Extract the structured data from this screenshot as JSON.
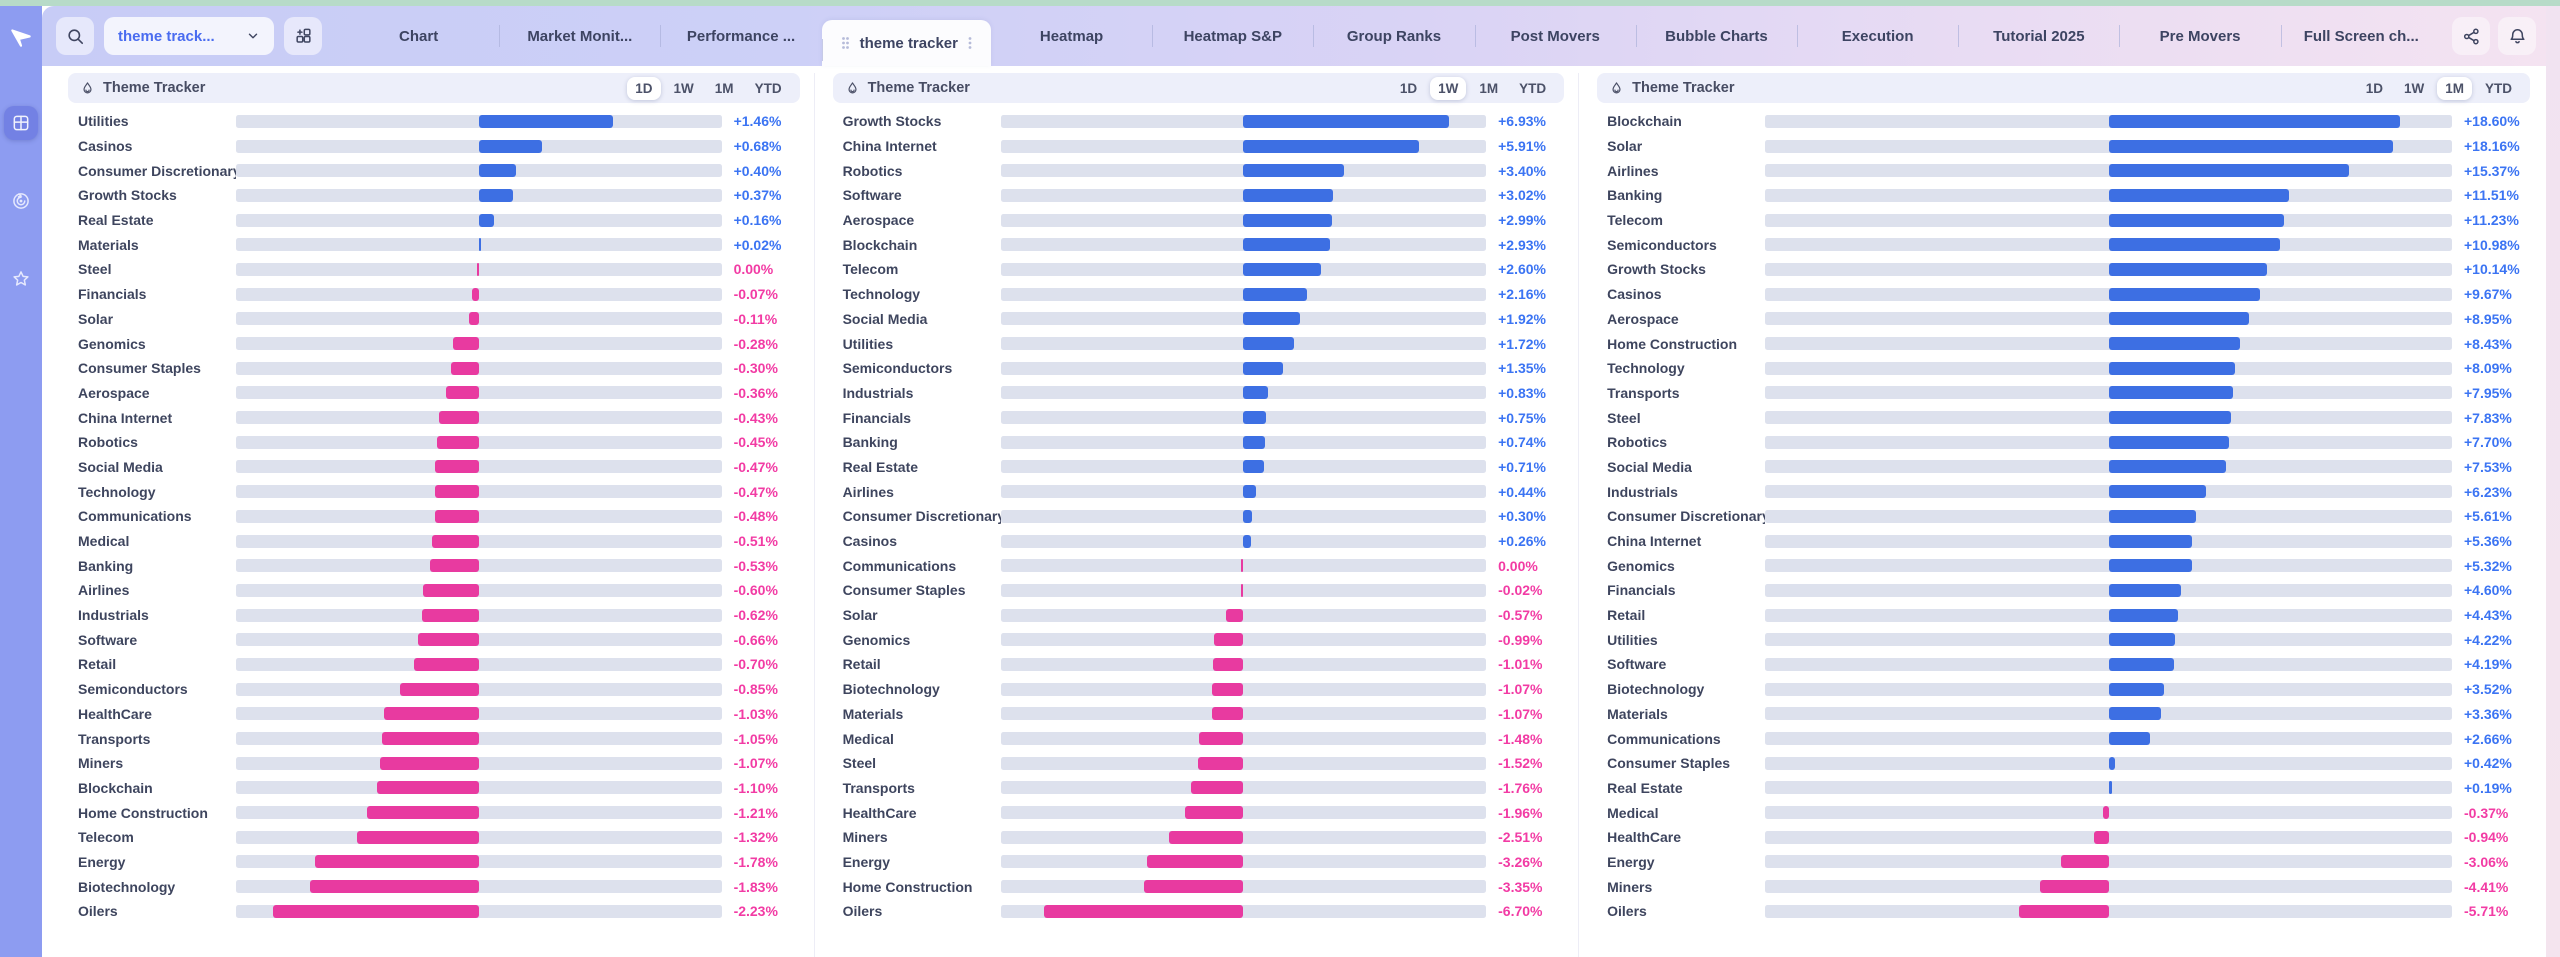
{
  "toolbar": {
    "search_icon": "magnifier",
    "dropdown_value": "theme track...",
    "add_layout_icon": "grid-plus",
    "tabs": [
      {
        "label": "Chart",
        "active": false
      },
      {
        "label": "Market Monit...",
        "active": false
      },
      {
        "label": "Performance ...",
        "active": false
      },
      {
        "label": "theme tracker",
        "active": true
      },
      {
        "label": "Heatmap",
        "active": false
      },
      {
        "label": "Heatmap S&P",
        "active": false
      },
      {
        "label": "Group Ranks",
        "active": false
      },
      {
        "label": "Post Movers",
        "active": false
      },
      {
        "label": "Bubble Charts",
        "active": false
      },
      {
        "label": "Execution",
        "active": false
      },
      {
        "label": "Tutorial 2025",
        "active": false
      },
      {
        "label": "Pre Movers",
        "active": false
      },
      {
        "label": "Full Screen ch...",
        "active": false
      }
    ],
    "actions": [
      "share",
      "notifications"
    ]
  },
  "sidebar": {
    "items": [
      {
        "name": "dashboard",
        "active": true
      },
      {
        "name": "tracker",
        "active": false
      },
      {
        "name": "favorites",
        "active": false
      }
    ]
  },
  "colors": {
    "positive_bar": "#3d6fe3",
    "negative_bar": "#e83aa0",
    "positive_text": "#3b74f3",
    "negative_text": "#f23ba4",
    "track": "#dde1ed",
    "sidebar": "#8d9cf1",
    "top_strip": "#b7dbc8"
  },
  "panels": [
    {
      "title": "Theme Tracker",
      "periods": [
        "1D",
        "1W",
        "1M",
        "YTD"
      ],
      "selected_period": "1D",
      "rows": [
        {
          "label": "Utilities",
          "value": "+1.46%",
          "pct": 1.46
        },
        {
          "label": "Casinos",
          "value": "+0.68%",
          "pct": 0.68
        },
        {
          "label": "Consumer Discretionary",
          "value": "+0.40%",
          "pct": 0.4
        },
        {
          "label": "Growth Stocks",
          "value": "+0.37%",
          "pct": 0.37
        },
        {
          "label": "Real Estate",
          "value": "+0.16%",
          "pct": 0.16
        },
        {
          "label": "Materials",
          "value": "+0.02%",
          "pct": 0.02
        },
        {
          "label": "Steel",
          "value": "0.00%",
          "pct": 0.0
        },
        {
          "label": "Financials",
          "value": "-0.07%",
          "pct": -0.07
        },
        {
          "label": "Solar",
          "value": "-0.11%",
          "pct": -0.11
        },
        {
          "label": "Genomics",
          "value": "-0.28%",
          "pct": -0.28
        },
        {
          "label": "Consumer Staples",
          "value": "-0.30%",
          "pct": -0.3
        },
        {
          "label": "Aerospace",
          "value": "-0.36%",
          "pct": -0.36
        },
        {
          "label": "China Internet",
          "value": "-0.43%",
          "pct": -0.43
        },
        {
          "label": "Robotics",
          "value": "-0.45%",
          "pct": -0.45
        },
        {
          "label": "Social Media",
          "value": "-0.47%",
          "pct": -0.47
        },
        {
          "label": "Technology",
          "value": "-0.47%",
          "pct": -0.47
        },
        {
          "label": "Communications",
          "value": "-0.48%",
          "pct": -0.48
        },
        {
          "label": "Medical",
          "value": "-0.51%",
          "pct": -0.51
        },
        {
          "label": "Banking",
          "value": "-0.53%",
          "pct": -0.53
        },
        {
          "label": "Airlines",
          "value": "-0.60%",
          "pct": -0.6
        },
        {
          "label": "Industrials",
          "value": "-0.62%",
          "pct": -0.62
        },
        {
          "label": "Software",
          "value": "-0.66%",
          "pct": -0.66
        },
        {
          "label": "Retail",
          "value": "-0.70%",
          "pct": -0.7
        },
        {
          "label": "Semiconductors",
          "value": "-0.85%",
          "pct": -0.85
        },
        {
          "label": "HealthCare",
          "value": "-1.03%",
          "pct": -1.03
        },
        {
          "label": "Transports",
          "value": "-1.05%",
          "pct": -1.05
        },
        {
          "label": "Miners",
          "value": "-1.07%",
          "pct": -1.07
        },
        {
          "label": "Blockchain",
          "value": "-1.10%",
          "pct": -1.1
        },
        {
          "label": "Home Construction",
          "value": "-1.21%",
          "pct": -1.21
        },
        {
          "label": "Telecom",
          "value": "-1.32%",
          "pct": -1.32
        },
        {
          "label": "Energy",
          "value": "-1.78%",
          "pct": -1.78
        },
        {
          "label": "Biotechnology",
          "value": "-1.83%",
          "pct": -1.83
        },
        {
          "label": "Oilers",
          "value": "-2.23%",
          "pct": -2.23
        }
      ]
    },
    {
      "title": "Theme Tracker",
      "periods": [
        "1D",
        "1W",
        "1M",
        "YTD"
      ],
      "selected_period": "1W",
      "rows": [
        {
          "label": "Growth Stocks",
          "value": "+6.93%",
          "pct": 6.93
        },
        {
          "label": "China Internet",
          "value": "+5.91%",
          "pct": 5.91
        },
        {
          "label": "Robotics",
          "value": "+3.40%",
          "pct": 3.4
        },
        {
          "label": "Software",
          "value": "+3.02%",
          "pct": 3.02
        },
        {
          "label": "Aerospace",
          "value": "+2.99%",
          "pct": 2.99
        },
        {
          "label": "Blockchain",
          "value": "+2.93%",
          "pct": 2.93
        },
        {
          "label": "Telecom",
          "value": "+2.60%",
          "pct": 2.6
        },
        {
          "label": "Technology",
          "value": "+2.16%",
          "pct": 2.16
        },
        {
          "label": "Social Media",
          "value": "+1.92%",
          "pct": 1.92
        },
        {
          "label": "Utilities",
          "value": "+1.72%",
          "pct": 1.72
        },
        {
          "label": "Semiconductors",
          "value": "+1.35%",
          "pct": 1.35
        },
        {
          "label": "Industrials",
          "value": "+0.83%",
          "pct": 0.83
        },
        {
          "label": "Financials",
          "value": "+0.75%",
          "pct": 0.75
        },
        {
          "label": "Banking",
          "value": "+0.74%",
          "pct": 0.74
        },
        {
          "label": "Real Estate",
          "value": "+0.71%",
          "pct": 0.71
        },
        {
          "label": "Airlines",
          "value": "+0.44%",
          "pct": 0.44
        },
        {
          "label": "Consumer Discretionary",
          "value": "+0.30%",
          "pct": 0.3
        },
        {
          "label": "Casinos",
          "value": "+0.26%",
          "pct": 0.26
        },
        {
          "label": "Communications",
          "value": "0.00%",
          "pct": 0.0
        },
        {
          "label": "Consumer Staples",
          "value": "-0.02%",
          "pct": -0.02
        },
        {
          "label": "Solar",
          "value": "-0.57%",
          "pct": -0.57
        },
        {
          "label": "Genomics",
          "value": "-0.99%",
          "pct": -0.99
        },
        {
          "label": "Retail",
          "value": "-1.01%",
          "pct": -1.01
        },
        {
          "label": "Biotechnology",
          "value": "-1.07%",
          "pct": -1.07
        },
        {
          "label": "Materials",
          "value": "-1.07%",
          "pct": -1.07
        },
        {
          "label": "Medical",
          "value": "-1.48%",
          "pct": -1.48
        },
        {
          "label": "Steel",
          "value": "-1.52%",
          "pct": -1.52
        },
        {
          "label": "Transports",
          "value": "-1.76%",
          "pct": -1.76
        },
        {
          "label": "HealthCare",
          "value": "-1.96%",
          "pct": -1.96
        },
        {
          "label": "Miners",
          "value": "-2.51%",
          "pct": -2.51
        },
        {
          "label": "Energy",
          "value": "-3.26%",
          "pct": -3.26
        },
        {
          "label": "Home Construction",
          "value": "-3.35%",
          "pct": -3.35
        },
        {
          "label": "Oilers",
          "value": "-6.70%",
          "pct": -6.7
        }
      ]
    },
    {
      "title": "Theme Tracker",
      "periods": [
        "1D",
        "1W",
        "1M",
        "YTD"
      ],
      "selected_period": "1M",
      "rows": [
        {
          "label": "Blockchain",
          "value": "+18.60%",
          "pct": 18.6
        },
        {
          "label": "Solar",
          "value": "+18.16%",
          "pct": 18.16
        },
        {
          "label": "Airlines",
          "value": "+15.37%",
          "pct": 15.37
        },
        {
          "label": "Banking",
          "value": "+11.51%",
          "pct": 11.51
        },
        {
          "label": "Telecom",
          "value": "+11.23%",
          "pct": 11.23
        },
        {
          "label": "Semiconductors",
          "value": "+10.98%",
          "pct": 10.98
        },
        {
          "label": "Growth Stocks",
          "value": "+10.14%",
          "pct": 10.14
        },
        {
          "label": "Casinos",
          "value": "+9.67%",
          "pct": 9.67
        },
        {
          "label": "Aerospace",
          "value": "+8.95%",
          "pct": 8.95
        },
        {
          "label": "Home Construction",
          "value": "+8.43%",
          "pct": 8.43
        },
        {
          "label": "Technology",
          "value": "+8.09%",
          "pct": 8.09
        },
        {
          "label": "Transports",
          "value": "+7.95%",
          "pct": 7.95
        },
        {
          "label": "Steel",
          "value": "+7.83%",
          "pct": 7.83
        },
        {
          "label": "Robotics",
          "value": "+7.70%",
          "pct": 7.7
        },
        {
          "label": "Social Media",
          "value": "+7.53%",
          "pct": 7.53
        },
        {
          "label": "Industrials",
          "value": "+6.23%",
          "pct": 6.23
        },
        {
          "label": "Consumer Discretionary",
          "value": "+5.61%",
          "pct": 5.61
        },
        {
          "label": "China Internet",
          "value": "+5.36%",
          "pct": 5.36
        },
        {
          "label": "Genomics",
          "value": "+5.32%",
          "pct": 5.32
        },
        {
          "label": "Financials",
          "value": "+4.60%",
          "pct": 4.6
        },
        {
          "label": "Retail",
          "value": "+4.43%",
          "pct": 4.43
        },
        {
          "label": "Utilities",
          "value": "+4.22%",
          "pct": 4.22
        },
        {
          "label": "Software",
          "value": "+4.19%",
          "pct": 4.19
        },
        {
          "label": "Biotechnology",
          "value": "+3.52%",
          "pct": 3.52
        },
        {
          "label": "Materials",
          "value": "+3.36%",
          "pct": 3.36
        },
        {
          "label": "Communications",
          "value": "+2.66%",
          "pct": 2.66
        },
        {
          "label": "Consumer Staples",
          "value": "+0.42%",
          "pct": 0.42
        },
        {
          "label": "Real Estate",
          "value": "+0.19%",
          "pct": 0.19
        },
        {
          "label": "Medical",
          "value": "-0.37%",
          "pct": -0.37
        },
        {
          "label": "HealthCare",
          "value": "-0.94%",
          "pct": -0.94
        },
        {
          "label": "Energy",
          "value": "-3.06%",
          "pct": -3.06
        },
        {
          "label": "Miners",
          "value": "-4.41%",
          "pct": -4.41
        },
        {
          "label": "Oilers",
          "value": "-5.71%",
          "pct": -5.71
        }
      ]
    }
  ]
}
